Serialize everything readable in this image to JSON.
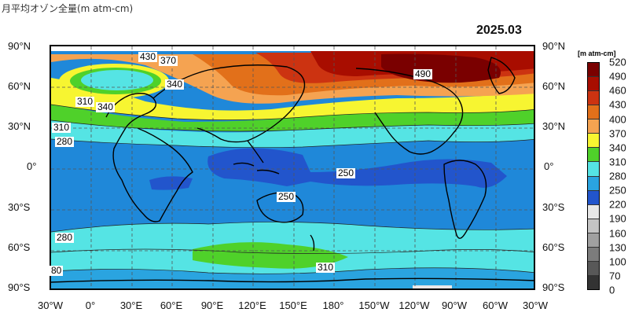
{
  "page_title": "月平均オゾン全量(m atm-cm)",
  "map": {
    "date": "2025.03",
    "lat_labels_left": [
      "90°N",
      "60°N",
      "30°N",
      "0°",
      "30°S",
      "60°S",
      "90°S"
    ],
    "lat_labels_right": [
      "90°N",
      "60°N",
      "30°N",
      "0°",
      "30°S",
      "60°S",
      "90°S"
    ],
    "lon_labels": [
      "30°W",
      "0°",
      "30°E",
      "60°E",
      "90°E",
      "120°E",
      "150°E",
      "180°",
      "150°W",
      "120°W",
      "90°W",
      "60°W",
      "30°W"
    ],
    "contour_labels": [
      "430",
      "370",
      "340",
      "310",
      "340",
      "310",
      "280",
      "490",
      "250",
      "250",
      "280",
      "80",
      "310"
    ]
  },
  "colorbar": {
    "unit_label": "[m atm-cm]",
    "levels": [
      "520",
      "490",
      "460",
      "430",
      "400",
      "370",
      "340",
      "310",
      "280",
      "250",
      "220",
      "190",
      "160",
      "130",
      "100",
      "70",
      "0"
    ],
    "colors": [
      "#7a0000",
      "#a80d00",
      "#cc3311",
      "#e2701a",
      "#f5a351",
      "#f7f531",
      "#4fd12a",
      "#55e4e4",
      "#2aa4e0",
      "#2255cc",
      "#e8e8e8",
      "#c4c4c4",
      "#a0a0a0",
      "#7c7c7c",
      "#585858",
      "#333333"
    ]
  }
}
